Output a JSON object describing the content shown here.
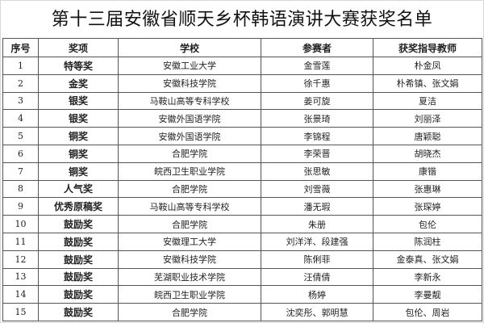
{
  "title": "第十三届安徽省顺天乡杯韩语演讲大赛获奖名单",
  "columns": [
    "序号",
    "奖项",
    "学校",
    "参赛者",
    "获奖指导教师"
  ],
  "rows": [
    [
      "1",
      "特等奖",
      "安徽工业大学",
      "金雪莲",
      "朴金凤"
    ],
    [
      "2",
      "金奖",
      "安徽科技学院",
      "徐千惠",
      "朴希镇、张文娟"
    ],
    [
      "3",
      "银奖",
      "马鞍山高等专科学校",
      "姜可旋",
      "夏洁"
    ],
    [
      "4",
      "银奖",
      "安徽外国语学院",
      "张景琦",
      "刘丽泽"
    ],
    [
      "5",
      "铜奖",
      "安徽外国语学院",
      "李锦程",
      "唐颖聪"
    ],
    [
      "6",
      "铜奖",
      "合肥学院",
      "李荣晋",
      "胡晓杰"
    ],
    [
      "7",
      "铜奖",
      "皖西卫生职业学院",
      "张思敏",
      "康锴"
    ],
    [
      "8",
      "人气奖",
      "合肥学院",
      "刘雪薇",
      "张惠琳"
    ],
    [
      "9",
      "优秀原稿奖",
      "马鞍山高等专科学校",
      "潘无瑕",
      "张琛婷"
    ],
    [
      "10",
      "鼓励奖",
      "合肥学院",
      "朱册",
      "包伦"
    ],
    [
      "11",
      "鼓励奖",
      "安徽理工大学",
      "刘洋洋、段建强",
      "陈润柱"
    ],
    [
      "12",
      "鼓励奖",
      "安徽科技学院",
      "陈俐菲",
      "金泰真、张文娟"
    ],
    [
      "13",
      "鼓励奖",
      "芜湖职业技术学院",
      "汪倩倩",
      "李新永"
    ],
    [
      "14",
      "鼓励奖",
      "皖西卫生职业学院",
      "杨婷",
      "李曼靓"
    ],
    [
      "15",
      "鼓励奖",
      "合肥学院",
      "沈奕彤、郭明慧",
      "包伦、周岩"
    ]
  ]
}
